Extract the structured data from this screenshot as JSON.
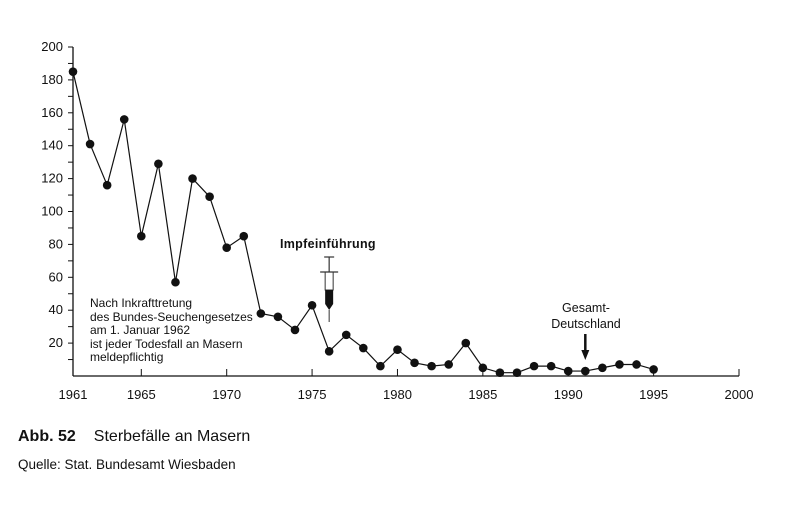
{
  "chart_data": {
    "type": "line",
    "x": [
      1961,
      1962,
      1963,
      1964,
      1965,
      1966,
      1967,
      1968,
      1969,
      1970,
      1971,
      1972,
      1973,
      1974,
      1975,
      1976,
      1977,
      1978,
      1979,
      1980,
      1981,
      1982,
      1983,
      1984,
      1985,
      1986,
      1987,
      1988,
      1989,
      1990,
      1991,
      1992,
      1993,
      1994,
      1995
    ],
    "y": [
      185,
      141,
      116,
      156,
      85,
      129,
      57,
      120,
      109,
      78,
      85,
      38,
      36,
      28,
      43,
      15,
      25,
      17,
      6,
      16,
      8,
      6,
      7,
      20,
      5,
      2,
      2,
      6,
      6,
      3,
      3,
      5,
      7,
      7,
      4
    ],
    "xlim": [
      1961,
      2000
    ],
    "ylim": [
      0,
      200
    ],
    "x_ticks": [
      "1961",
      "1965",
      "1970",
      "1975",
      "1980",
      "1985",
      "1990",
      "1995",
      "2000"
    ],
    "y_ticks": [
      "20",
      "40",
      "60",
      "80",
      "100",
      "120",
      "140",
      "160",
      "180",
      "200"
    ],
    "grid": false,
    "marker": "filled-circle",
    "line_color": "#111111",
    "annotations": {
      "note": "Nach Inkrafttretung\ndes Bundes-Seuchengesetzes\nam 1. Januar 1962\nist jeder Todesfall an Masern\nmeldepflichtig",
      "vaccine": {
        "label": "Impfeinführung",
        "year": 1976,
        "icon": "syringe-icon"
      },
      "reunification": {
        "label_1": "Gesamt-",
        "label_2": "Deutschland",
        "year": 1991,
        "icon": "arrow-down-icon"
      }
    }
  },
  "caption": {
    "number": "Abb. 52",
    "title": "Sterbefälle an Masern",
    "source": "Quelle: Stat. Bundesamt Wiesbaden"
  }
}
